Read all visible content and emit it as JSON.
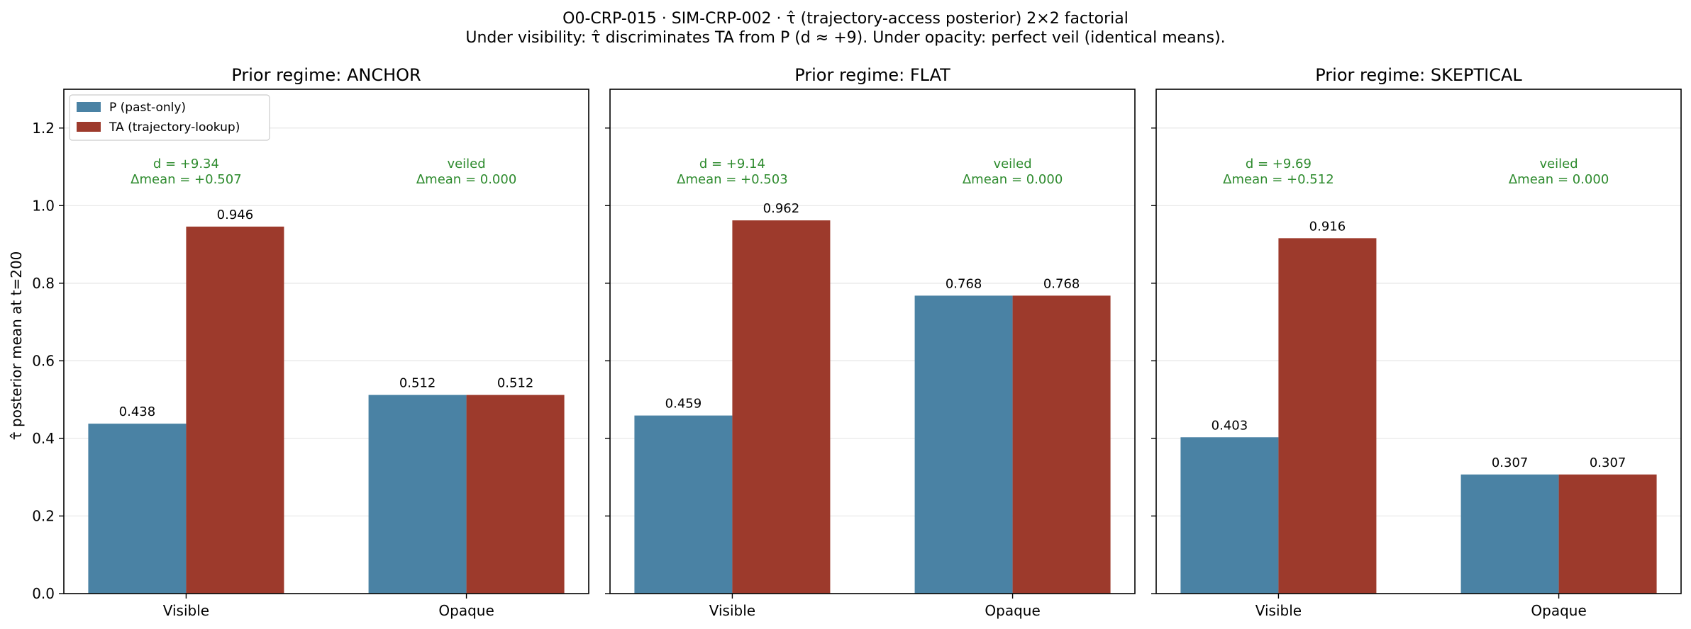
{
  "title": "O0-CRP-015 · SIM-CRP-002 · τ̂ (trajectory-access posterior) 2×2 factorial",
  "subtitle": "Under visibility: τ̂ discriminates TA from P (d ≈ +9). Under opacity: perfect veil (identical means).",
  "colors": {
    "P": "#4a82a4",
    "TA": "#9d3a2c",
    "annotation": "#2e8b2e",
    "grid": "#e6e6e6"
  },
  "chart_data": {
    "type": "bar",
    "ylabel": "τ̂ posterior mean at t=200",
    "ylim": [
      0,
      1.3
    ],
    "yticks": [
      "0.0",
      "0.2",
      "0.4",
      "0.6",
      "0.8",
      "1.0",
      "1.2"
    ],
    "grid": "horizontal",
    "legend": {
      "placement": "top-left",
      "entries": [
        "P (past-only)",
        "TA (trajectory-lookup)"
      ]
    },
    "categories": [
      "Visible",
      "Opaque"
    ],
    "panels": [
      {
        "title": "Prior regime: ANCHOR",
        "series": [
          {
            "name": "P (past-only)",
            "values": [
              0.438,
              0.512
            ],
            "labels": [
              "0.438",
              "0.512"
            ]
          },
          {
            "name": "TA (trajectory-lookup)",
            "values": [
              0.946,
              0.512
            ],
            "labels": [
              "0.946",
              "0.512"
            ]
          }
        ],
        "annotations": [
          [
            "d = +9.34",
            "Δmean = +0.507"
          ],
          [
            "veiled",
            "Δmean = 0.000"
          ]
        ]
      },
      {
        "title": "Prior regime: FLAT",
        "series": [
          {
            "name": "P (past-only)",
            "values": [
              0.459,
              0.768
            ],
            "labels": [
              "0.459",
              "0.768"
            ]
          },
          {
            "name": "TA (trajectory-lookup)",
            "values": [
              0.962,
              0.768
            ],
            "labels": [
              "0.962",
              "0.768"
            ]
          }
        ],
        "annotations": [
          [
            "d = +9.14",
            "Δmean = +0.503"
          ],
          [
            "veiled",
            "Δmean = 0.000"
          ]
        ]
      },
      {
        "title": "Prior regime: SKEPTICAL",
        "series": [
          {
            "name": "P (past-only)",
            "values": [
              0.403,
              0.307
            ],
            "labels": [
              "0.403",
              "0.307"
            ]
          },
          {
            "name": "TA (trajectory-lookup)",
            "values": [
              0.916,
              0.307
            ],
            "labels": [
              "0.916",
              "0.307"
            ]
          }
        ],
        "annotations": [
          [
            "d = +9.69",
            "Δmean = +0.512"
          ],
          [
            "veiled",
            "Δmean = 0.000"
          ]
        ]
      }
    ]
  }
}
